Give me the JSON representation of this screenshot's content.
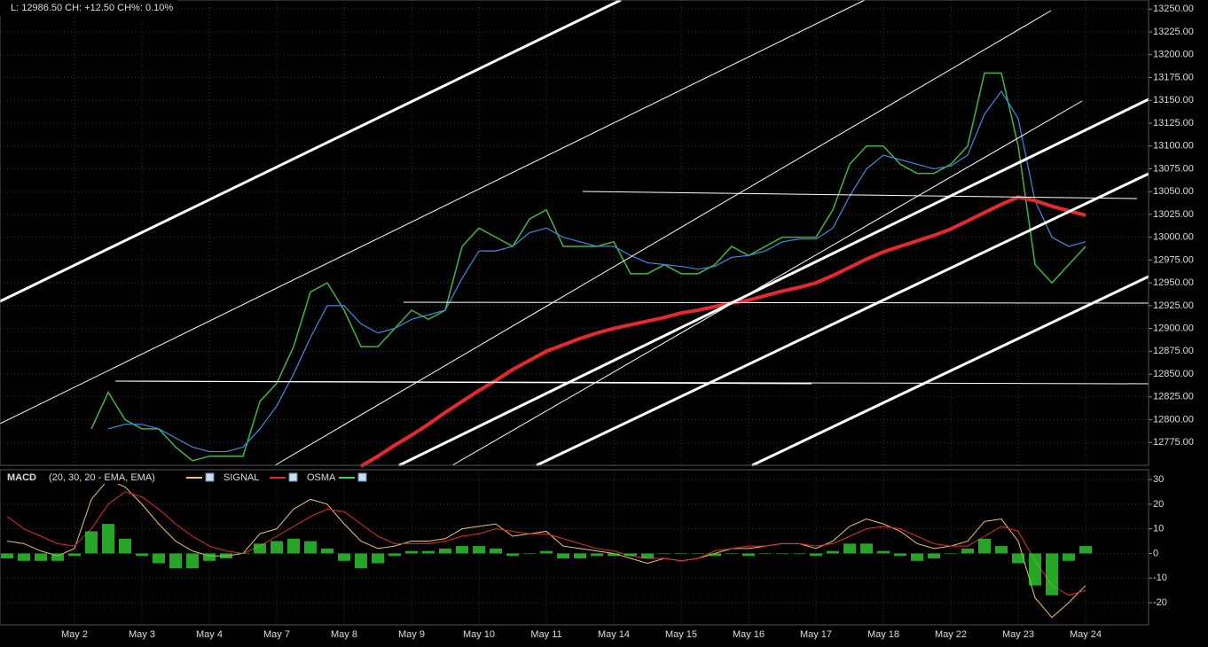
{
  "header": "L: 12986.50 CH: +12.50 CH%: 0.10%",
  "chart_data": [
    {
      "type": "line",
      "categories": [
        null,
        null,
        null,
        null,
        "May 2",
        null,
        null,
        null,
        "May 3",
        null,
        null,
        null,
        "May 4",
        null,
        null,
        null,
        "May 7",
        null,
        null,
        null,
        "May 8",
        null,
        null,
        null,
        "May 9",
        null,
        null,
        null,
        "May 10",
        null,
        null,
        null,
        "May 11",
        null,
        null,
        null,
        "May 14",
        null,
        null,
        null,
        "May 15",
        null,
        null,
        null,
        "May 16",
        null,
        null,
        null,
        "May 17",
        null,
        null,
        null,
        "May 18",
        null,
        null,
        null,
        "May 22",
        null,
        null,
        null,
        "May 23",
        null,
        null,
        null,
        "May 24"
      ],
      "series": [
        {
          "color": "#3cb83c",
          "values": [
            null,
            null,
            null,
            null,
            null,
            12790,
            12830,
            12800,
            12790,
            12790,
            12770,
            12755,
            12760,
            12760,
            12760,
            12820,
            12840,
            12880,
            12940,
            12950,
            12920,
            12880,
            12880,
            12900,
            12920,
            12910,
            12920,
            12990,
            13010,
            13000,
            12990,
            13020,
            13030,
            12990,
            12990,
            12990,
            12995,
            12960,
            12960,
            12970,
            12960,
            12960,
            12970,
            12990,
            12980,
            12990,
            13000,
            13000,
            13000,
            13030,
            13080,
            13100,
            13100,
            13080,
            13070,
            13070,
            13080,
            13100,
            13180,
            13180,
            13100,
            12970,
            12950,
            12970,
            12990
          ]
        },
        {
          "color": "#3c8ce6",
          "values": [
            null,
            null,
            null,
            null,
            null,
            null,
            12790,
            12795,
            12795,
            12790,
            12780,
            12770,
            12765,
            12765,
            12770,
            12790,
            12815,
            12850,
            12890,
            12925,
            12925,
            12905,
            12895,
            12900,
            12910,
            12915,
            12920,
            12955,
            12985,
            12985,
            12990,
            13005,
            13010,
            13000,
            12995,
            12990,
            12990,
            12980,
            12972,
            12970,
            12968,
            12965,
            12968,
            12978,
            12980,
            12985,
            12995,
            12998,
            12998,
            13010,
            13045,
            13075,
            13090,
            13085,
            13080,
            13075,
            13078,
            13090,
            13135,
            13160,
            13130,
            13040,
            13000,
            12990,
            12995
          ]
        },
        {
          "color": "#e8282d",
          "values": [
            null,
            null,
            null,
            null,
            null,
            null,
            null,
            null,
            null,
            null,
            null,
            null,
            null,
            null,
            null,
            null,
            null,
            null,
            null,
            null,
            null,
            12749,
            12760,
            12772,
            12783,
            12795,
            12808,
            12820,
            12832,
            12843,
            12855,
            12865,
            12875,
            12882,
            12889,
            12895,
            12900,
            12904,
            12908,
            12912,
            12917,
            12920,
            12924,
            12928,
            12931,
            12936,
            12941,
            12945,
            12950,
            12958,
            12967,
            12976,
            12984,
            12990,
            12996,
            13002,
            13009,
            13018,
            13027,
            13036,
            13044,
            13040,
            13034,
            13029,
            13024
          ]
        }
      ],
      "ylim": [
        12750,
        13260
      ],
      "yticks": [
        {
          "value": 12775,
          "label": "12775.00"
        },
        {
          "value": 12800,
          "label": "12800.00"
        },
        {
          "value": 12825,
          "label": "12825.00"
        },
        {
          "value": 12850,
          "label": "12850.00"
        },
        {
          "value": 12875,
          "label": "12875.00"
        },
        {
          "value": 12900,
          "label": "12900.00"
        },
        {
          "value": 12925,
          "label": "12925.00"
        },
        {
          "value": 12950,
          "label": "12950.00"
        },
        {
          "value": 12975,
          "label": "12975.00"
        },
        {
          "value": 13000,
          "label": "13000.00"
        },
        {
          "value": 13025,
          "label": "13025.00"
        },
        {
          "value": 13050,
          "label": "13050.00"
        },
        {
          "value": 13075,
          "label": "13075.00"
        },
        {
          "value": 13100,
          "label": "13100.00"
        },
        {
          "value": 13125,
          "label": "13125.00"
        },
        {
          "value": 13150,
          "label": "13150.00"
        },
        {
          "value": 13175,
          "label": "13175.00"
        },
        {
          "value": 13200,
          "label": "13200.00"
        },
        {
          "value": 13225,
          "label": "13225.00"
        },
        {
          "value": 13250,
          "label": "13250.00"
        }
      ],
      "grid": true
    },
    {
      "type": "macd",
      "title": "MACD",
      "subtitle": "(20, 30, 20 - EMA, EMA)",
      "series": [
        {
          "color": "#f0c070",
          "values": [
            5,
            4,
            1,
            -1,
            2,
            22,
            30,
            27,
            20,
            12,
            5,
            1,
            -1,
            -1,
            0,
            8,
            10,
            18,
            22,
            20,
            12,
            5,
            2,
            3,
            5,
            5,
            6,
            10,
            11,
            12,
            7,
            8,
            9,
            3,
            2,
            1,
            0,
            -2,
            -4,
            -2,
            -3,
            -2,
            0,
            2,
            2,
            3,
            4,
            4,
            2,
            5,
            11,
            14,
            12,
            9,
            4,
            2,
            3,
            5,
            13,
            14,
            5,
            -18,
            -26,
            -20,
            -13
          ]
        },
        {
          "name": "SIGNAL",
          "color": "#e8282d",
          "values": [
            15,
            10,
            7,
            4,
            3,
            10,
            20,
            25,
            23,
            18,
            12,
            7,
            3,
            1,
            0,
            3,
            7,
            11,
            15,
            18,
            17,
            12,
            7,
            4,
            4,
            4,
            5,
            7,
            8,
            10,
            9,
            8,
            8,
            6,
            4,
            2,
            1,
            -1,
            -2,
            -2,
            -3,
            -2,
            1,
            2,
            3,
            3,
            4,
            4,
            3,
            4,
            7,
            10,
            11,
            10,
            7,
            4,
            3,
            3,
            7,
            11,
            9,
            -3,
            -13,
            -17,
            -15
          ]
        },
        {
          "name": "OSMA",
          "color": "#33dd33",
          "bars": true,
          "values": [
            -2,
            -3,
            -3,
            -3,
            -1,
            9,
            12,
            6,
            -1,
            -4,
            -6,
            -6,
            -3,
            -2,
            0,
            4,
            5,
            6,
            5,
            2,
            -3,
            -6,
            -4,
            -1,
            1,
            1,
            2,
            3,
            3,
            2,
            -1,
            0,
            1,
            -2,
            -2,
            -1,
            -1,
            -1,
            -2,
            0,
            0,
            0,
            -1,
            0,
            -1,
            0,
            0,
            0,
            -1,
            1,
            4,
            4,
            1,
            -1,
            -3,
            -2,
            0,
            2,
            6,
            3,
            -4,
            -13,
            -17,
            -3,
            3
          ]
        }
      ],
      "ylim": [
        -29,
        34
      ],
      "yticks": [
        -20,
        -10,
        0,
        10,
        20,
        30
      ],
      "grid": true
    }
  ]
}
